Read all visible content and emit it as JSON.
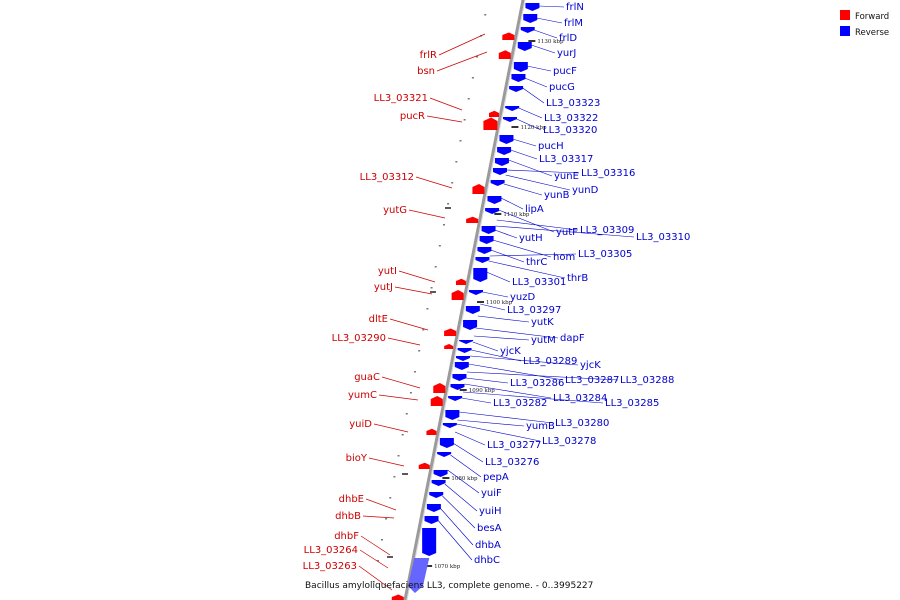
{
  "caption": "Bacillus amyloliquefaciens LL3, complete genome. - 0..3995227",
  "legend": [
    {
      "label": "Forward",
      "color": "#ff0000"
    },
    {
      "label": "Reverse",
      "color": "#0000ff"
    }
  ],
  "colors": {
    "forward": "#ff0000",
    "reverse": "#0000ff",
    "axis": "#999999",
    "label_forward": "#cc0000",
    "label_reverse": "#0000cc"
  },
  "ticks": [
    "1130 kbp",
    "1120 kbp",
    "1110 kbp",
    "1100 kbp",
    "1090 kbp",
    "1080 kbp",
    "1070 kbp"
  ],
  "forward_genes": [
    "frlR",
    "bsn",
    "LL3_03321",
    "pucR",
    "LL3_03312",
    "yutG",
    "yutI",
    "yutJ",
    "dltE",
    "LL3_03290",
    "guaC",
    "yumC",
    "yuiD",
    "bioY",
    "dhbE",
    "dhbB",
    "dhbF",
    "LL3_03264",
    "LL3_03263"
  ],
  "reverse_genes": [
    "frlN",
    "frlM",
    "frlD",
    "yurJ",
    "pucF",
    "pucG",
    "LL3_03323",
    "LL3_03322",
    "LL3_03320",
    "pucH",
    "LL3_03317",
    "yunE",
    "LL3_03316",
    "yunD",
    "yunB",
    "lipA",
    "yutF",
    "LL3_03309",
    "LL3_03310",
    "yutH",
    "hom",
    "thrC",
    "LL3_03305",
    "thrB",
    "LL3_03301",
    "yuzD",
    "LL3_03297",
    "yutK",
    "dapF",
    "yutM",
    "yjcK",
    "LL3_03289",
    "yjcK",
    "LL3_03287",
    "LL3_03288",
    "LL3_03286",
    "LL3_03284",
    "LL3_03285",
    "LL3_03282",
    "LL3_03280",
    "yumB",
    "LL3_03278",
    "LL3_03277",
    "LL3_03276",
    "pepA",
    "yuiF",
    "yuiH",
    "besA",
    "dhbA",
    "dhbC"
  ]
}
